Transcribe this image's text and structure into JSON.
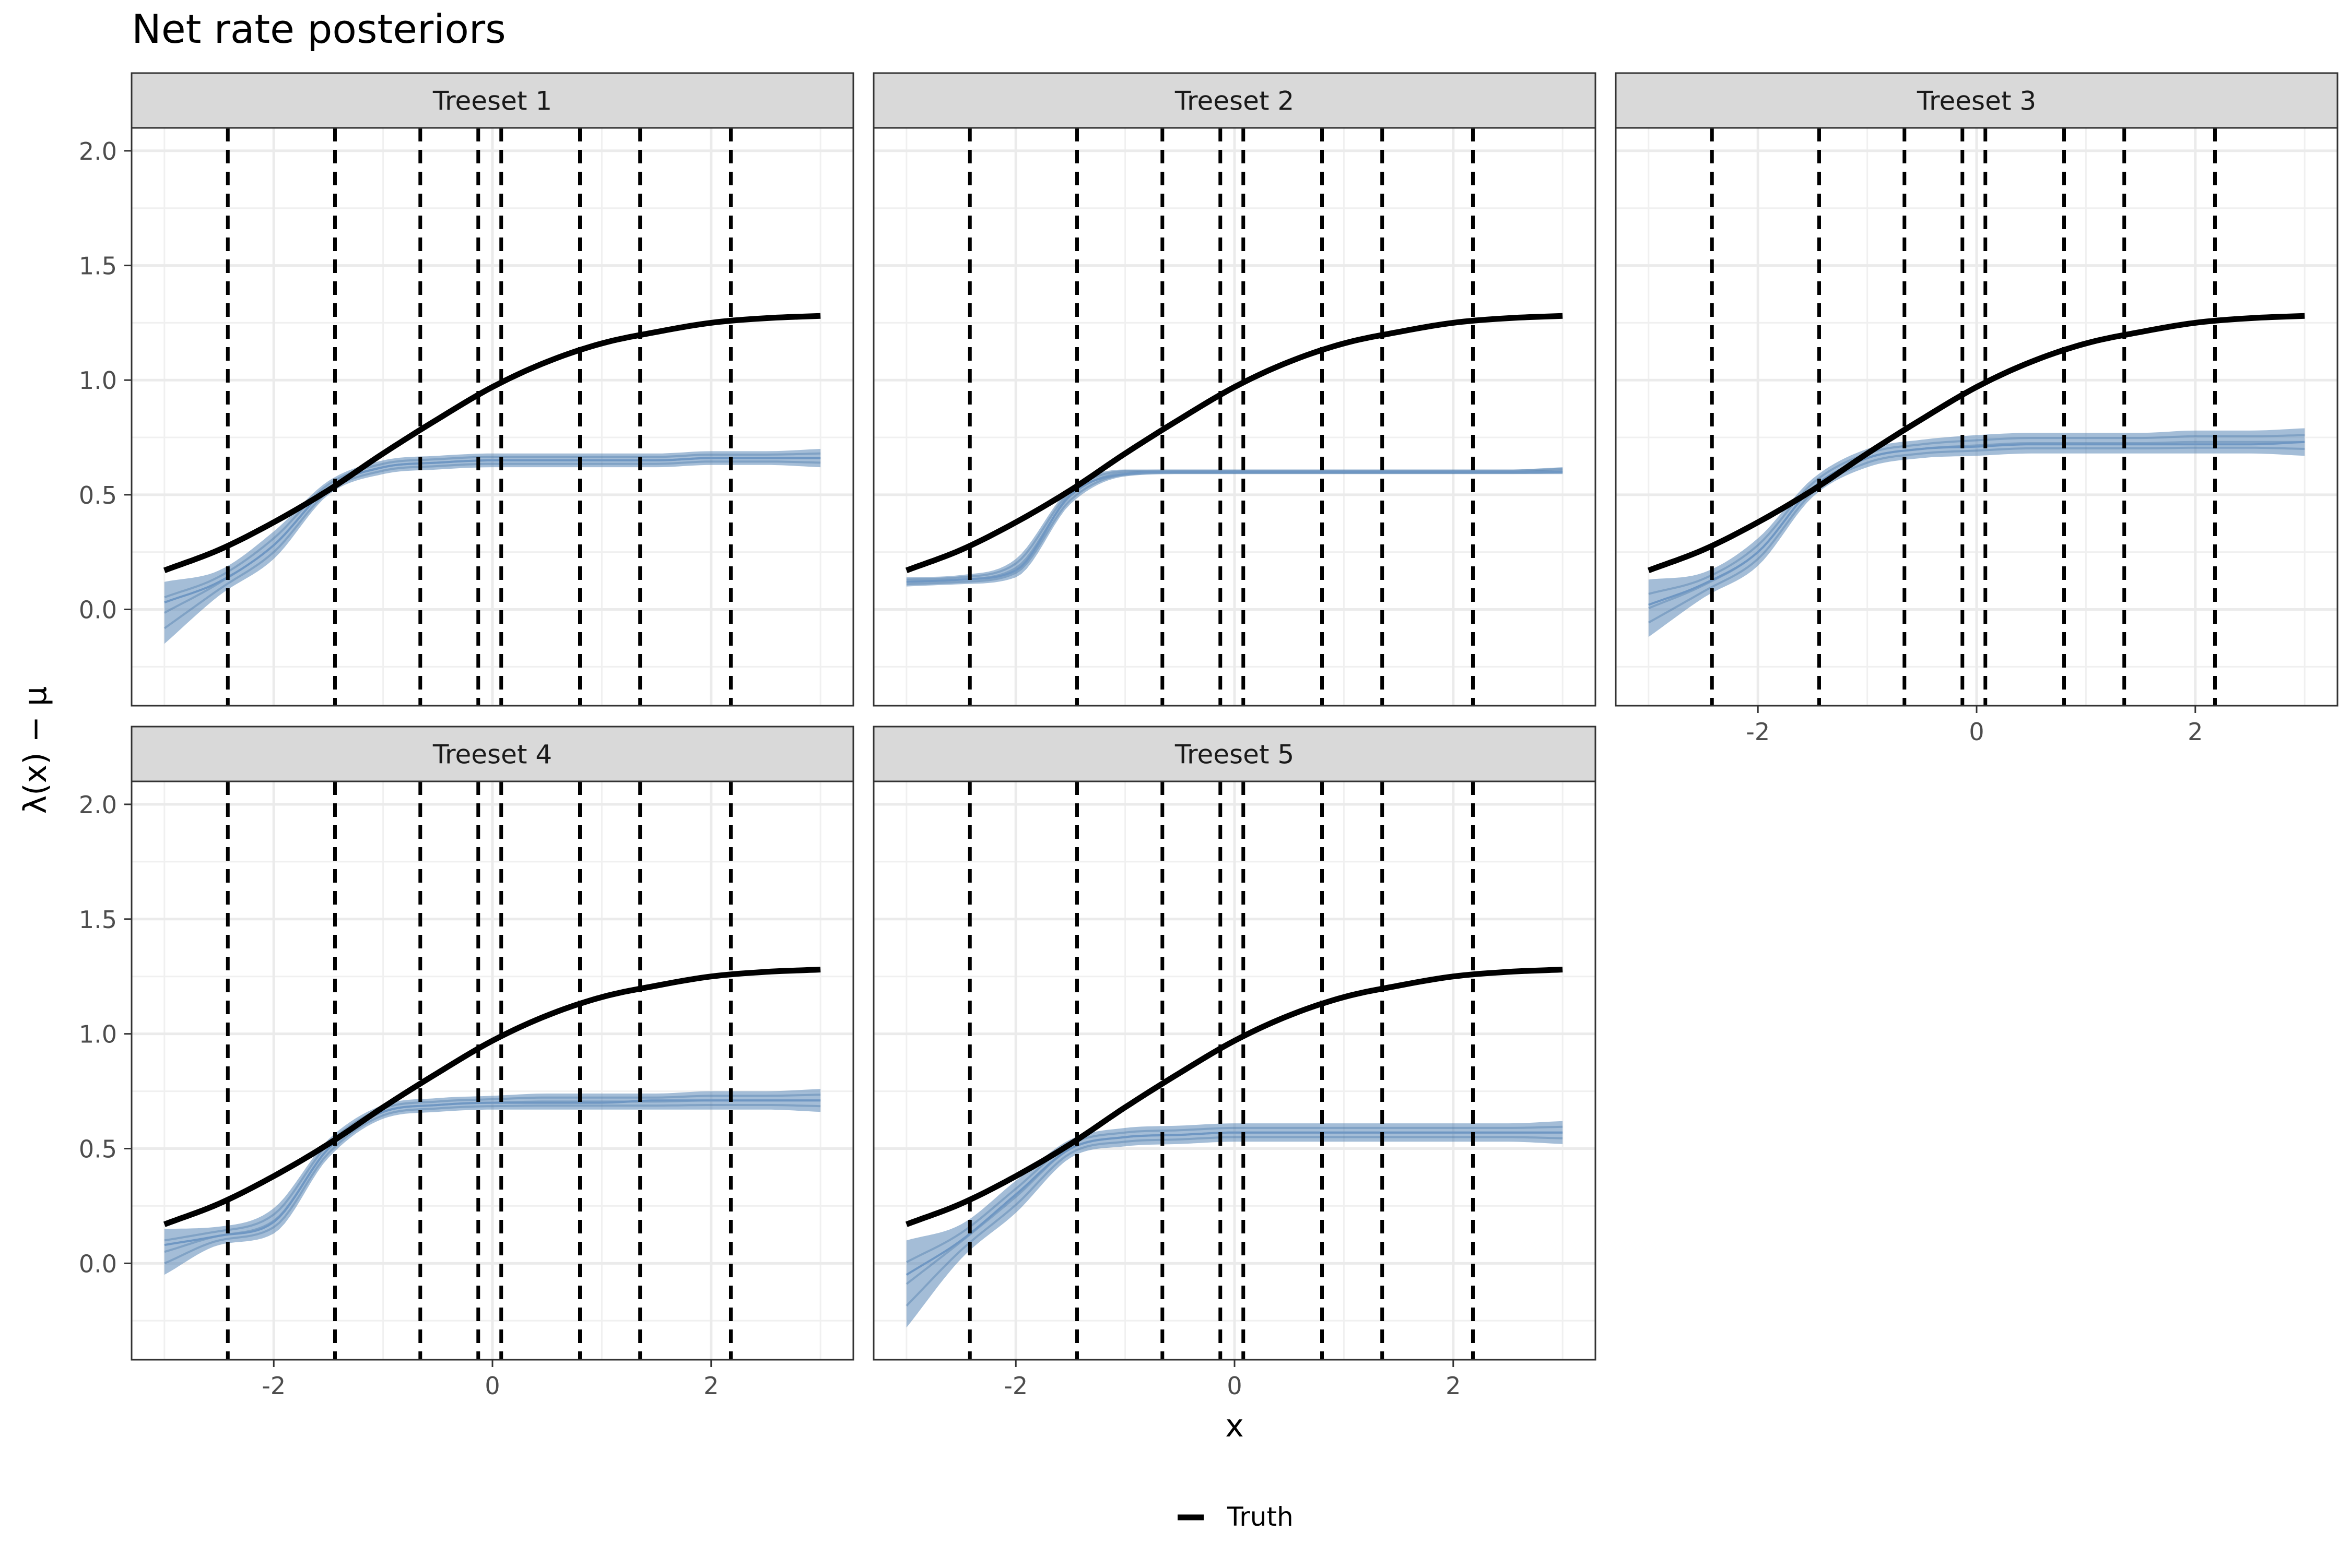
{
  "chart_data": {
    "type": "line",
    "title": "Net rate posteriors",
    "xlabel": "x",
    "ylabel": "λ(x) − μ",
    "xlim": [
      -3.3,
      3.3
    ],
    "ylim": [
      -0.42,
      2.1
    ],
    "x_ticks": [
      -2,
      0,
      2
    ],
    "x_tick_labels": [
      "-2",
      "0",
      "2"
    ],
    "y_ticks": [
      0.0,
      0.5,
      1.0,
      1.5,
      2.0
    ],
    "y_tick_labels": [
      "0.0",
      "0.5",
      "1.0",
      "1.5",
      "2.0"
    ],
    "grid": true,
    "legend": {
      "position": "bottom",
      "entries": [
        {
          "label": "Truth",
          "style": "solid-black-line"
        }
      ]
    },
    "breakpoints": [
      -2.42,
      -1.44,
      -0.66,
      -0.13,
      0.08,
      0.8,
      1.35,
      2.18
    ],
    "truth_curve": {
      "name": "Truth",
      "x": [
        -3.0,
        -2.5,
        -2.0,
        -1.5,
        -1.0,
        -0.5,
        0.0,
        0.5,
        1.0,
        1.5,
        2.0,
        2.5,
        3.0
      ],
      "y": [
        0.17,
        0.26,
        0.38,
        0.52,
        0.68,
        0.83,
        0.97,
        1.08,
        1.16,
        1.21,
        1.25,
        1.27,
        1.28
      ]
    },
    "panels": [
      {
        "label": "Treeset 1",
        "posterior": {
          "x": [
            -3.0,
            -2.5,
            -2.0,
            -1.5,
            -1.0,
            -0.5,
            0.0,
            0.5,
            1.0,
            1.5,
            2.0,
            2.5,
            3.0
          ],
          "mean": [
            0.03,
            0.12,
            0.28,
            0.53,
            0.62,
            0.64,
            0.65,
            0.65,
            0.65,
            0.65,
            0.66,
            0.66,
            0.66
          ],
          "lower": [
            -0.15,
            0.06,
            0.22,
            0.5,
            0.59,
            0.61,
            0.62,
            0.62,
            0.62,
            0.62,
            0.63,
            0.63,
            0.62
          ],
          "upper": [
            0.12,
            0.17,
            0.34,
            0.56,
            0.65,
            0.67,
            0.68,
            0.68,
            0.68,
            0.68,
            0.69,
            0.69,
            0.7
          ]
        }
      },
      {
        "label": "Treeset 2",
        "posterior": {
          "x": [
            -3.0,
            -2.5,
            -2.0,
            -1.5,
            -1.0,
            -0.5,
            0.0,
            0.5,
            1.0,
            1.5,
            2.0,
            2.5,
            3.0
          ],
          "mean": [
            0.12,
            0.13,
            0.17,
            0.5,
            0.59,
            0.6,
            0.6,
            0.6,
            0.6,
            0.6,
            0.6,
            0.6,
            0.6
          ],
          "lower": [
            0.1,
            0.11,
            0.14,
            0.46,
            0.58,
            0.59,
            0.59,
            0.59,
            0.59,
            0.59,
            0.59,
            0.59,
            0.59
          ],
          "upper": [
            0.14,
            0.15,
            0.22,
            0.53,
            0.61,
            0.61,
            0.61,
            0.61,
            0.61,
            0.61,
            0.61,
            0.61,
            0.62
          ]
        }
      },
      {
        "label": "Treeset 3",
        "posterior": {
          "x": [
            -3.0,
            -2.5,
            -2.0,
            -1.5,
            -1.0,
            -0.5,
            0.0,
            0.5,
            1.0,
            1.5,
            2.0,
            2.5,
            3.0
          ],
          "mean": [
            0.02,
            0.11,
            0.25,
            0.53,
            0.66,
            0.7,
            0.71,
            0.72,
            0.72,
            0.72,
            0.72,
            0.72,
            0.73
          ],
          "lower": [
            -0.12,
            0.05,
            0.19,
            0.49,
            0.62,
            0.66,
            0.67,
            0.68,
            0.68,
            0.68,
            0.68,
            0.68,
            0.67
          ],
          "upper": [
            0.13,
            0.16,
            0.31,
            0.57,
            0.7,
            0.74,
            0.76,
            0.77,
            0.77,
            0.77,
            0.78,
            0.78,
            0.79
          ]
        }
      },
      {
        "label": "Treeset 4",
        "posterior": {
          "x": [
            -3.0,
            -2.5,
            -2.0,
            -1.5,
            -1.0,
            -0.5,
            0.0,
            0.5,
            1.0,
            1.5,
            2.0,
            2.5,
            3.0
          ],
          "mean": [
            0.08,
            0.12,
            0.18,
            0.5,
            0.66,
            0.69,
            0.7,
            0.7,
            0.7,
            0.71,
            0.71,
            0.71,
            0.71
          ],
          "lower": [
            -0.05,
            0.08,
            0.13,
            0.46,
            0.63,
            0.66,
            0.67,
            0.67,
            0.67,
            0.67,
            0.67,
            0.67,
            0.66
          ],
          "upper": [
            0.15,
            0.16,
            0.24,
            0.54,
            0.69,
            0.72,
            0.73,
            0.74,
            0.74,
            0.74,
            0.75,
            0.75,
            0.76
          ]
        }
      },
      {
        "label": "Treeset 5",
        "posterior": {
          "x": [
            -3.0,
            -2.5,
            -2.0,
            -1.5,
            -1.0,
            -0.5,
            0.0,
            0.5,
            1.0,
            1.5,
            2.0,
            2.5,
            3.0
          ],
          "mean": [
            -0.05,
            0.1,
            0.3,
            0.5,
            0.55,
            0.56,
            0.57,
            0.57,
            0.57,
            0.57,
            0.57,
            0.57,
            0.57
          ],
          "lower": [
            -0.28,
            0.02,
            0.22,
            0.46,
            0.51,
            0.52,
            0.53,
            0.53,
            0.53,
            0.53,
            0.53,
            0.53,
            0.52
          ],
          "upper": [
            0.1,
            0.17,
            0.36,
            0.54,
            0.59,
            0.6,
            0.61,
            0.61,
            0.61,
            0.61,
            0.61,
            0.61,
            0.62
          ]
        }
      }
    ]
  }
}
